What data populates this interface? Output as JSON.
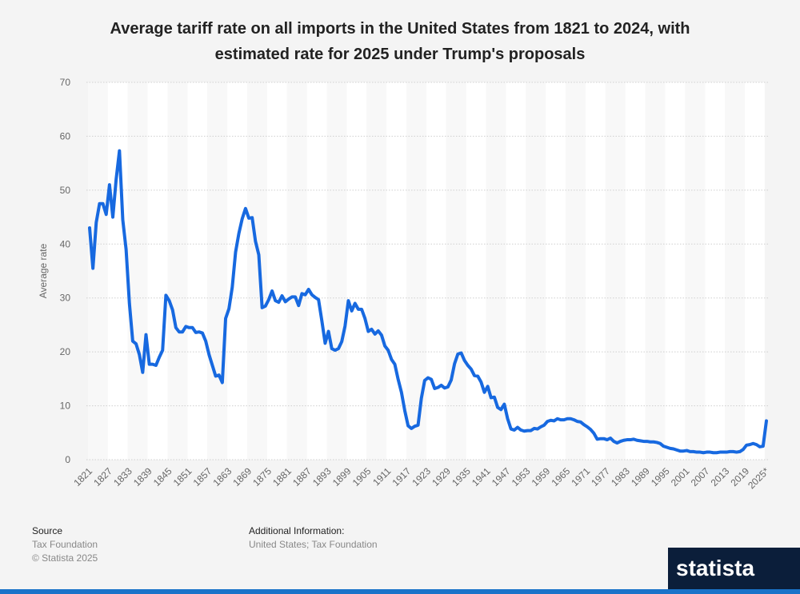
{
  "chart_data": {
    "type": "line",
    "title": "Average tariff rate on all imports in the United States from 1821 to 2024, with estimated rate for 2025 under Trump's proposals",
    "y_label": "Average rate",
    "color": "#1769e0",
    "ylim": [
      0,
      70
    ],
    "yticks": [
      0,
      10,
      20,
      30,
      40,
      50,
      60,
      70
    ],
    "grid": true,
    "categories": [
      "1821",
      null,
      null,
      null,
      null,
      null,
      "1827",
      null,
      null,
      null,
      null,
      null,
      "1833",
      null,
      null,
      null,
      null,
      null,
      "1839",
      null,
      null,
      null,
      null,
      null,
      "1845",
      null,
      null,
      null,
      null,
      null,
      "1851",
      null,
      null,
      null,
      null,
      null,
      "1857",
      null,
      null,
      null,
      null,
      null,
      "1863",
      null,
      null,
      null,
      null,
      null,
      "1869",
      null,
      null,
      null,
      null,
      null,
      "1875",
      null,
      null,
      null,
      null,
      null,
      "1881",
      null,
      null,
      null,
      null,
      null,
      "1887",
      null,
      null,
      null,
      null,
      null,
      "1893",
      null,
      null,
      null,
      null,
      null,
      "1899",
      null,
      null,
      null,
      null,
      null,
      "1905",
      null,
      null,
      null,
      null,
      null,
      "1911",
      null,
      null,
      null,
      null,
      null,
      "1917",
      null,
      null,
      null,
      null,
      null,
      "1923",
      null,
      null,
      null,
      null,
      null,
      "1929",
      null,
      null,
      null,
      null,
      null,
      "1935",
      null,
      null,
      null,
      null,
      null,
      "1941",
      null,
      null,
      null,
      null,
      null,
      "1947",
      null,
      null,
      null,
      null,
      null,
      "1953",
      null,
      null,
      null,
      null,
      null,
      "1959",
      null,
      null,
      null,
      null,
      null,
      "1965",
      null,
      null,
      null,
      null,
      null,
      "1971",
      null,
      null,
      null,
      null,
      null,
      "1977",
      null,
      null,
      null,
      null,
      null,
      "1983",
      null,
      null,
      null,
      null,
      null,
      "1989",
      null,
      null,
      null,
      null,
      null,
      "1995",
      null,
      null,
      null,
      null,
      null,
      "2001",
      null,
      null,
      null,
      null,
      null,
      "2007",
      null,
      null,
      null,
      null,
      null,
      "2013",
      null,
      null,
      null,
      null,
      null,
      "2019",
      null,
      null,
      null,
      null,
      null,
      "2025*"
    ],
    "values": [
      43,
      35.5,
      44,
      47.5,
      47.5,
      45.5,
      51,
      45,
      52,
      57.3,
      44.5,
      39,
      29,
      22,
      21.5,
      19.5,
      16.2,
      23.2,
      17.7,
      17.7,
      17.5,
      19,
      20.3,
      30.5,
      29.5,
      27.8,
      24.5,
      23.7,
      23.7,
      24.7,
      24.5,
      24.5,
      23.6,
      23.7,
      23.5,
      22,
      19.5,
      17.5,
      15.5,
      15.7,
      14.3,
      26.2,
      28,
      32,
      38.5,
      42,
      44.7,
      46.6,
      44.8,
      44.9,
      40.5,
      38,
      28.2,
      28.5,
      29.7,
      31.3,
      29.5,
      29.2,
      30.4,
      29.3,
      29.8,
      30.2,
      30.2,
      28.6,
      30.8,
      30.6,
      31.6,
      30.6,
      30.1,
      29.7,
      25.8,
      21.6,
      23.8,
      20.6,
      20.3,
      20.6,
      21.9,
      24.8,
      29.5,
      27.6,
      29,
      27.9,
      27.9,
      26.2,
      23.8,
      24.2,
      23.3,
      23.9,
      23.1,
      21.1,
      20.3,
      18.6,
      17.7,
      14.9,
      12.5,
      9.1,
      6.3,
      5.8,
      6.2,
      6.4,
      11.4,
      14.7,
      15.2,
      14.9,
      13.2,
      13.4,
      13.8,
      13.3,
      13.5,
      14.8,
      17.8,
      19.6,
      19.8,
      18.4,
      17.5,
      16.8,
      15.6,
      15.5,
      14.4,
      12.5,
      13.6,
      11.5,
      11.6,
      9.7,
      9.3,
      10.3,
      7.6,
      5.7,
      5.5,
      6,
      5.5,
      5.3,
      5.4,
      5.4,
      5.8,
      5.7,
      6.1,
      6.4,
      7.1,
      7.3,
      7.2,
      7.6,
      7.4,
      7.4,
      7.6,
      7.6,
      7.4,
      7.1,
      7,
      6.5,
      6.1,
      5.6,
      4.9,
      3.8,
      3.9,
      3.9,
      3.7,
      4,
      3.4,
      3.1,
      3.4,
      3.6,
      3.7,
      3.7,
      3.8,
      3.6,
      3.5,
      3.4,
      3.4,
      3.3,
      3.3,
      3.2,
      3,
      2.5,
      2.3,
      2.1,
      2,
      1.8,
      1.6,
      1.6,
      1.7,
      1.5,
      1.5,
      1.4,
      1.4,
      1.3,
      1.4,
      1.4,
      1.3,
      1.3,
      1.4,
      1.4,
      1.4,
      1.5,
      1.5,
      1.4,
      1.5,
      1.9,
      2.7,
      2.8,
      3,
      2.8,
      2.4,
      2.5,
      7.2
    ]
  },
  "footer": {
    "source_heading": "Source",
    "source": "Tax Foundation",
    "copyright": "© Statista 2025",
    "info_heading": "Additional Information:",
    "info": "United States; Tax Foundation",
    "logo": "statista"
  }
}
